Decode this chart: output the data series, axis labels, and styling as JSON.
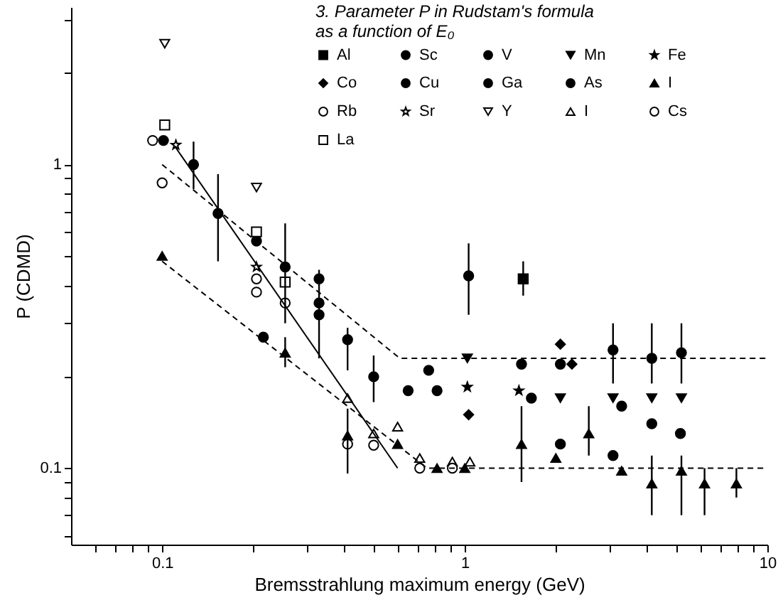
{
  "chart_data": {
    "type": "scatter",
    "title": "3. Parameter P in Rudstam's formula\nas a function of E₀",
    "xlabel": "Bremsstrahlung maximum energy (GeV)",
    "ylabel": "P (CDMD)",
    "log": "xy",
    "grid": false,
    "legend": "top right",
    "xlim": [
      0.05,
      10
    ],
    "ylim": [
      0.056,
      3.3
    ],
    "xticks": [
      {
        "value": 0.06,
        "label": null
      },
      {
        "value": 0.07,
        "label": null
      },
      {
        "value": 0.08,
        "label": null
      },
      {
        "value": 0.09,
        "label": null
      },
      0.1,
      {
        "value": 0.2,
        "label": null
      },
      {
        "value": 0.3,
        "label": null
      },
      {
        "value": 0.4,
        "label": null
      },
      {
        "value": 0.5,
        "label": null
      },
      {
        "value": 0.6,
        "label": null
      },
      {
        "value": 0.7,
        "label": null
      },
      {
        "value": 0.8,
        "label": null
      },
      {
        "value": 0.9,
        "label": null
      },
      1,
      {
        "value": 2,
        "label": null
      },
      {
        "value": 3,
        "label": null
      },
      {
        "value": 4,
        "label": null
      },
      {
        "value": 5,
        "label": null
      },
      {
        "value": 6,
        "label": null
      },
      {
        "value": 7,
        "label": null
      },
      {
        "value": 8,
        "label": null
      },
      {
        "value": 9,
        "label": null
      },
      10
    ],
    "yticks": [
      {
        "value": 0.06,
        "label": null
      },
      {
        "value": 0.07,
        "label": null
      },
      {
        "value": 0.08,
        "label": null
      },
      {
        "value": 0.09,
        "label": null
      },
      0.1,
      {
        "value": 0.2,
        "label": null
      },
      {
        "value": 0.3,
        "label": null
      },
      {
        "value": 0.4,
        "label": null
      },
      {
        "value": 0.5,
        "label": null
      },
      {
        "value": 0.6,
        "label": null
      },
      {
        "value": 0.7,
        "label": null
      },
      {
        "value": 0.8,
        "label": null
      },
      {
        "value": 0.9,
        "label": null
      },
      1,
      {
        "value": 2,
        "label": null
      },
      {
        "value": 3,
        "label": null
      }
    ],
    "series": [
      {
        "name": "Al",
        "color": "#000000",
        "marker": "square",
        "x": [
          1.56
        ],
        "values": [
          0.42
        ],
        "errors": [
          [
            0.37,
            0.48
          ]
        ]
      },
      {
        "name": "Sc",
        "color": "#000000",
        "marker": "circle",
        "x": [
          0.101,
          0.127,
          0.153,
          0.205,
          0.255,
          0.33,
          0.33,
          0.41,
          0.5
        ],
        "values": [
          1.2,
          1.0,
          0.69,
          0.56,
          0.46,
          0.42,
          0.32,
          0.265,
          0.2
        ],
        "errors": [
          null,
          [
            0.83,
            1.19
          ],
          [
            0.48,
            0.93
          ],
          null,
          [
            0.3,
            0.64
          ],
          null,
          [
            0.23,
            0.45
          ],
          [
            0.21,
            0.29
          ],
          [
            0.165,
            0.235
          ]
        ]
      },
      {
        "name": "V",
        "color": "#000000",
        "marker": "circle",
        "x": [
          0.65,
          0.81,
          1.03,
          1.54,
          2.07,
          3.09,
          4.15,
          5.2
        ],
        "values": [
          0.18,
          0.18,
          0.43,
          0.22,
          0.22,
          0.245,
          0.23,
          0.24
        ],
        "errors": [
          null,
          null,
          [
            0.32,
            0.55
          ],
          null,
          null,
          [
            0.19,
            0.3
          ],
          [
            0.19,
            0.3
          ],
          [
            0.19,
            0.3
          ]
        ]
      },
      {
        "name": "Mn",
        "color": "#000000",
        "marker": "triangle-down",
        "x": [
          1.02,
          2.07,
          3.09,
          4.15,
          5.2
        ],
        "values": [
          0.23,
          0.17,
          0.17,
          0.17,
          0.17
        ]
      },
      {
        "name": "Fe",
        "color": "#000000",
        "marker": "star",
        "x": [
          1.02,
          1.51
        ],
        "values": [
          0.185,
          0.18
        ]
      },
      {
        "name": "Co",
        "color": "#000000",
        "marker": "diamond",
        "x": [
          1.03,
          2.07,
          2.26
        ],
        "values": [
          0.15,
          0.256,
          0.22
        ]
      },
      {
        "name": "Cu",
        "color": "#000000",
        "marker": "circle",
        "x": [
          0.76,
          2.07,
          3.09,
          4.15,
          5.16
        ],
        "values": [
          0.21,
          0.12,
          0.11,
          0.14,
          0.13
        ]
      },
      {
        "name": "Ga",
        "color": "#000000",
        "marker": "circle",
        "x": [
          0.33,
          1.66
        ],
        "values": [
          0.35,
          0.17
        ]
      },
      {
        "name": "As",
        "color": "#000000",
        "marker": "circle",
        "x": [
          0.216,
          3.3
        ],
        "values": [
          0.27,
          0.16
        ]
      },
      {
        "name": "I",
        "color": "#000000",
        "marker": "triangle",
        "x": [
          0.1,
          0.255,
          0.41,
          0.6,
          0.81,
          1.0,
          1.54,
          2.0,
          2.57,
          3.3,
          4.15,
          5.2,
          6.2,
          7.9
        ],
        "values": [
          0.5,
          0.24,
          0.128,
          0.12,
          0.1,
          0.1,
          0.12,
          0.108,
          0.13,
          0.098,
          0.089,
          0.098,
          0.089,
          0.089
        ],
        "errors": [
          null,
          [
            0.215,
            0.27
          ],
          null,
          null,
          null,
          null,
          [
            0.09,
            0.16
          ],
          null,
          [
            0.11,
            0.16
          ],
          null,
          [
            0.07,
            0.11
          ],
          [
            0.07,
            0.11
          ],
          [
            0.07,
            0.1
          ],
          [
            0.08,
            0.1
          ]
        ]
      },
      {
        "name": "Rb",
        "color": "#000000",
        "marker": "circle-open",
        "x": [
          0.093,
          0.1,
          0.205,
          0.205,
          0.255,
          0.41
        ],
        "values": [
          1.2,
          0.87,
          0.42,
          0.38,
          0.35,
          0.12
        ],
        "errors": [
          null,
          null,
          null,
          null,
          null,
          [
            0.096,
            0.157
          ]
        ]
      },
      {
        "name": "Sr",
        "color": "#000000",
        "marker": "star-open",
        "x": [
          0.111,
          0.205
        ],
        "values": [
          1.16,
          0.46
        ]
      },
      {
        "name": "Y",
        "color": "#000000",
        "marker": "triangle-down-open",
        "x": [
          0.102,
          0.205
        ],
        "values": [
          2.5,
          0.84
        ]
      },
      {
        "name": "I",
        "color": "#000000",
        "marker": "triangle-open",
        "x": [
          0.41,
          0.5,
          0.6,
          0.71,
          0.91,
          1.04
        ],
        "values": [
          0.17,
          0.13,
          0.137,
          0.108,
          0.105,
          0.105
        ]
      },
      {
        "name": "Cs",
        "color": "#000000",
        "marker": "circle-open",
        "x": [
          0.5,
          0.71,
          0.91
        ],
        "values": [
          0.119,
          0.1,
          0.1
        ]
      },
      {
        "name": "La",
        "color": "#000000",
        "marker": "square-open",
        "x": [
          0.102,
          0.205,
          0.255
        ],
        "values": [
          1.35,
          0.6,
          0.41
        ]
      },
      {
        "type": "line",
        "color": "#000000",
        "line_style": "dashed",
        "x": [
          0.1,
          0.61,
          10
        ],
        "values": [
          1.0,
          0.23,
          0.23
        ]
      },
      {
        "type": "line",
        "color": "#000000",
        "line_style": "dashed",
        "x": [
          0.1,
          0.75,
          10
        ],
        "values": [
          0.48,
          0.1,
          0.1
        ]
      },
      {
        "type": "line",
        "color": "#000000",
        "line_style": "solid",
        "x": [
          0.11,
          0.6
        ],
        "values": [
          1.15,
          0.1
        ]
      }
    ]
  }
}
